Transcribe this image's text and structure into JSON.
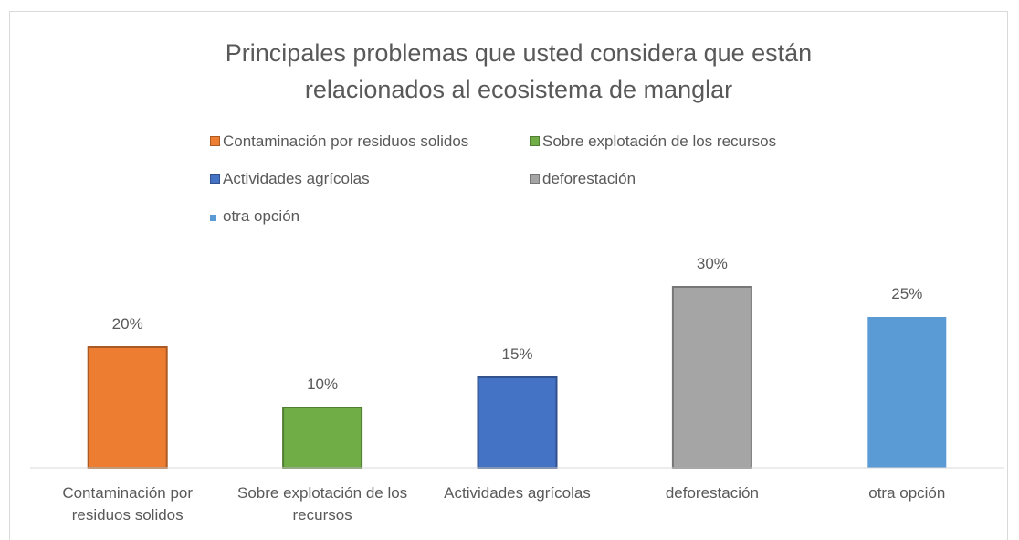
{
  "chart_data": {
    "type": "bar",
    "title": "Principales problemas que usted considera que están relacionados al ecosistema de manglar",
    "categories": [
      "Contaminación por residuos solidos",
      "Sobre explotación de los recursos",
      "Actividades agrícolas",
      "deforestación",
      "otra opción"
    ],
    "values": [
      20,
      10,
      15,
      30,
      25
    ],
    "value_labels": [
      "20%",
      "10%",
      "15%",
      "30%",
      "25%"
    ],
    "colors": [
      "#ed7d31",
      "#70ad47",
      "#4472c4",
      "#a5a5a5",
      "#5b9bd5"
    ],
    "ylim": [
      0,
      35
    ]
  }
}
